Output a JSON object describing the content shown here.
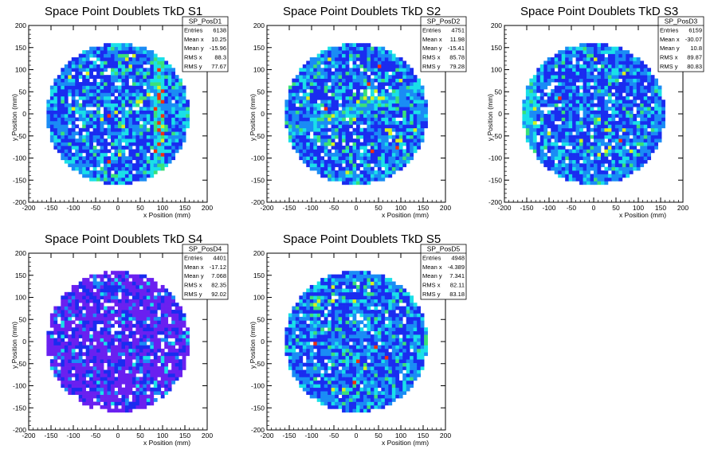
{
  "chart_data": [
    {
      "type": "heatmap",
      "title": "Space Point Doublets TkD S1",
      "xlabel": "x Position (mm)",
      "ylabel": "y Position (mm)",
      "xlim": [
        -200,
        200
      ],
      "ylim": [
        -200,
        200
      ],
      "xticks": [
        -200,
        -150,
        -100,
        -50,
        0,
        50,
        100,
        150,
        200
      ],
      "yticks": [
        -200,
        -150,
        -100,
        -50,
        0,
        50,
        100,
        150,
        200
      ],
      "radius": 160,
      "stats": {
        "name": "SP_PosD1",
        "rows": [
          [
            "Entries",
            "6138"
          ],
          [
            "Mean x",
            "10.25"
          ],
          [
            "Mean y",
            "-15.96"
          ],
          [
            "RMS x",
            "88.3"
          ],
          [
            "RMS y",
            "77.67"
          ]
        ]
      },
      "palette": "blue-cyan",
      "seed": 11,
      "feature": "vertical-hot-band",
      "feature_x": 95
    },
    {
      "type": "heatmap",
      "title": "Space Point Doublets TkD S2",
      "xlabel": "x Position (mm)",
      "ylabel": "y Position (mm)",
      "xlim": [
        -200,
        200
      ],
      "ylim": [
        -200,
        200
      ],
      "xticks": [
        -200,
        -150,
        -100,
        -50,
        0,
        50,
        100,
        150,
        200
      ],
      "yticks": [
        -200,
        -150,
        -100,
        -50,
        0,
        50,
        100,
        150,
        200
      ],
      "radius": 160,
      "stats": {
        "name": "SP_PosD2",
        "rows": [
          [
            "Entries",
            "4751"
          ],
          [
            "Mean x",
            "11.98"
          ],
          [
            "Mean y",
            "-15.41"
          ],
          [
            "RMS x",
            "85.78"
          ],
          [
            "RMS y",
            "79.28"
          ]
        ]
      },
      "palette": "blue-cyan",
      "seed": 23,
      "feature": "diagonal-band",
      "feature_x": 0
    },
    {
      "type": "heatmap",
      "title": "Space Point Doublets TkD S3",
      "xlabel": "x Position (mm)",
      "ylabel": "y Position (mm)",
      "xlim": [
        -200,
        200
      ],
      "ylim": [
        -200,
        200
      ],
      "xticks": [
        -200,
        -150,
        -100,
        -50,
        0,
        50,
        100,
        150,
        200
      ],
      "yticks": [
        -200,
        -150,
        -100,
        -50,
        0,
        50,
        100,
        150,
        200
      ],
      "radius": 160,
      "stats": {
        "name": "SP_PosD3",
        "rows": [
          [
            "Entries",
            "6159"
          ],
          [
            "Mean x",
            "-30.07"
          ],
          [
            "Mean y",
            "10.8"
          ],
          [
            "RMS x",
            "89.87"
          ],
          [
            "RMS y",
            "80.83"
          ]
        ]
      },
      "palette": "blue-cyan",
      "seed": 37,
      "feature": "left-hot-edge",
      "feature_x": -150
    },
    {
      "type": "heatmap",
      "title": "Space Point Doublets TkD S4",
      "xlabel": "x Position (mm)",
      "ylabel": "y Position (mm)",
      "xlim": [
        -200,
        200
      ],
      "ylim": [
        -200,
        200
      ],
      "xticks": [
        -200,
        -150,
        -100,
        -50,
        0,
        50,
        100,
        150,
        200
      ],
      "yticks": [
        -200,
        -150,
        -100,
        -50,
        0,
        50,
        100,
        150,
        200
      ],
      "radius": 160,
      "stats": {
        "name": "SP_PosD4",
        "rows": [
          [
            "Entries",
            "4401"
          ],
          [
            "Mean x",
            "-17.12"
          ],
          [
            "Mean y",
            "7.068"
          ],
          [
            "RMS x",
            "82.35"
          ],
          [
            "RMS y",
            "92.02"
          ]
        ]
      },
      "palette": "violet",
      "seed": 51,
      "feature": "none",
      "feature_x": 0
    },
    {
      "type": "heatmap",
      "title": "Space Point Doublets TkD S5",
      "xlabel": "x Position (mm)",
      "ylabel": "y Position (mm)",
      "xlim": [
        -200,
        200
      ],
      "ylim": [
        -200,
        200
      ],
      "xticks": [
        -200,
        -150,
        -100,
        -50,
        0,
        50,
        100,
        150,
        200
      ],
      "yticks": [
        -200,
        -150,
        -100,
        -50,
        0,
        50,
        100,
        150,
        200
      ],
      "radius": 160,
      "stats": {
        "name": "SP_PosD5",
        "rows": [
          [
            "Entries",
            "4948"
          ],
          [
            "Mean x",
            "-4.389"
          ],
          [
            "Mean y",
            "7.341"
          ],
          [
            "RMS x",
            "82.11"
          ],
          [
            "RMS y",
            "83.18"
          ]
        ]
      },
      "palette": "blue-cyan",
      "seed": 67,
      "feature": "right-hot-edge",
      "feature_x": 150
    }
  ],
  "colors": {
    "white": "#ffffff",
    "violet": "#6a20f0",
    "blue": "#1a2cf0",
    "sky": "#1a8cf5",
    "cyan": "#1ae0e8",
    "green": "#3ae07a",
    "yellow": "#d8f020",
    "red": "#f03010"
  }
}
